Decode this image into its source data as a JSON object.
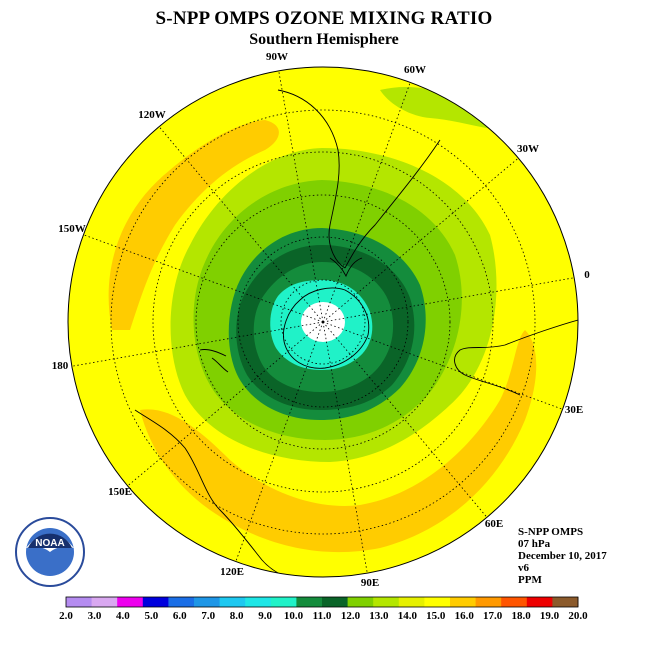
{
  "title": "S-NPP OMPS OZONE MIXING RATIO",
  "subtitle": "Southern Hemisphere",
  "longitude_labels": [
    "90W",
    "60W",
    "120W",
    "30W",
    "150W",
    "0",
    "180",
    "30E",
    "150E",
    "60E",
    "120E",
    "90E"
  ],
  "info": {
    "instrument": "S-NPP OMPS",
    "level": "07 hPa",
    "date": "December 10, 2017",
    "version": "v6",
    "units": "PPM"
  },
  "colorbar": {
    "ticks": [
      "2.0",
      "3.0",
      "4.0",
      "5.0",
      "6.0",
      "7.0",
      "8.0",
      "9.0",
      "10.0",
      "11.0",
      "12.0",
      "13.0",
      "14.0",
      "15.0",
      "16.0",
      "17.0",
      "18.0",
      "19.0",
      "20.0"
    ],
    "colors": [
      "#b58cf0",
      "#d9a8f0",
      "#ee00ee",
      "#0000dd",
      "#1a6ee6",
      "#1e96e6",
      "#1ec8f0",
      "#1ee6e6",
      "#20f2c8",
      "#148c3c",
      "#0a6428",
      "#80d000",
      "#b4e600",
      "#e6f000",
      "#ffff00",
      "#ffcc00",
      "#ff9900",
      "#ff5500",
      "#ee0000",
      "#8b5a2b"
    ]
  },
  "logo": {
    "name": "noaa-logo",
    "text": "NOAA"
  }
}
